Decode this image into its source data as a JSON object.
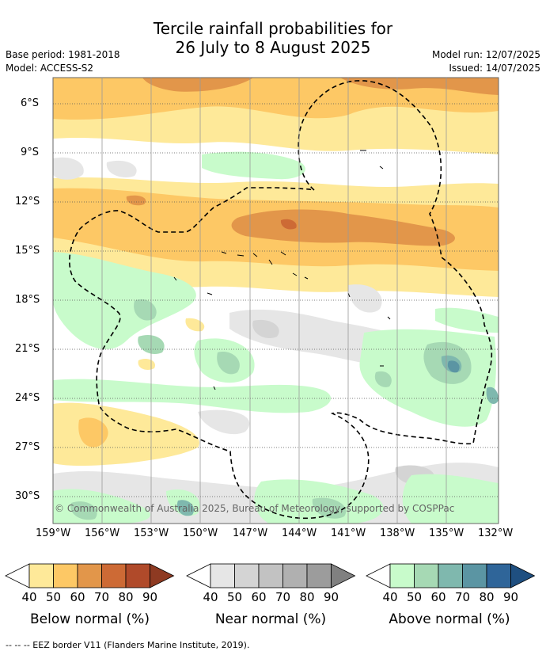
{
  "header": {
    "title_line1": "Tercile rainfall probabilities for",
    "title_line2": "26 July to 8 August 2025",
    "base_period": "Base period: 1981-2018",
    "model": "Model: ACCESS-S2",
    "model_run": "Model run: 12/07/2025",
    "issued": "Issued: 14/07/2025"
  },
  "map": {
    "lat_labels": [
      "6°S",
      "9°S",
      "12°S",
      "15°S",
      "18°S",
      "21°S",
      "24°S",
      "27°S",
      "30°S"
    ],
    "lon_labels": [
      "159°W",
      "156°W",
      "153°W",
      "150°W",
      "147°W",
      "144°W",
      "141°W",
      "138°W",
      "135°W",
      "132°W"
    ],
    "copyright": "© Commonwealth of Australia 2025, Bureau of Meteorology, supported by COSPPac"
  },
  "legends": [
    {
      "title": "Below normal (%)",
      "labels": [
        "40",
        "50",
        "60",
        "70",
        "80",
        "90"
      ],
      "colors": [
        "#ffffff",
        "#fee999",
        "#fdc865",
        "#e2964a",
        "#cd6a35",
        "#b04a2a",
        "#8e3a22"
      ]
    },
    {
      "title": "Near normal (%)",
      "labels": [
        "40",
        "50",
        "60",
        "70",
        "80",
        "90"
      ],
      "colors": [
        "#ffffff",
        "#e6e6e6",
        "#d4d4d4",
        "#c2c2c2",
        "#b0b0b0",
        "#9c9c9c",
        "#808080"
      ]
    },
    {
      "title": "Above normal (%)",
      "labels": [
        "40",
        "50",
        "60",
        "70",
        "80",
        "90"
      ],
      "colors": [
        "#ffffff",
        "#c8fbcb",
        "#a6d9b4",
        "#7fb8ae",
        "#5b95a3",
        "#2f6599",
        "#1f4f80"
      ]
    }
  ],
  "footer": "--  --  -- EEZ border V11 (Flanders Marine Institute, 2019)."
}
